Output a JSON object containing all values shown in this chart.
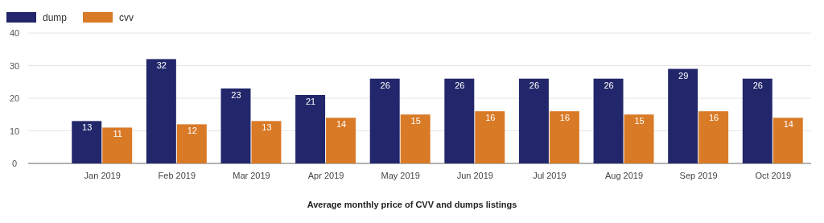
{
  "chart_data": {
    "type": "bar",
    "title": "Average monthly price of CVV and dumps listings",
    "categories": [
      "Jan 2019",
      "Feb 2019",
      "Mar 2019",
      "Apr 2019",
      "May 2019",
      "Jun 2019",
      "Jul 2019",
      "Aug 2019",
      "Sep 2019",
      "Oct 2019"
    ],
    "series": [
      {
        "name": "dump",
        "color": "#22276b",
        "values": [
          13,
          32,
          23,
          21,
          26,
          26,
          26,
          26,
          29,
          26
        ]
      },
      {
        "name": "cvv",
        "color": "#d97a27",
        "values": [
          11,
          12,
          13,
          14,
          15,
          16,
          16,
          15,
          16,
          14
        ]
      }
    ],
    "ylim": [
      0,
      40
    ],
    "yticks": [
      0,
      10,
      20,
      30,
      40
    ],
    "grid": "y",
    "legend": "top left",
    "data_labels": true
  }
}
